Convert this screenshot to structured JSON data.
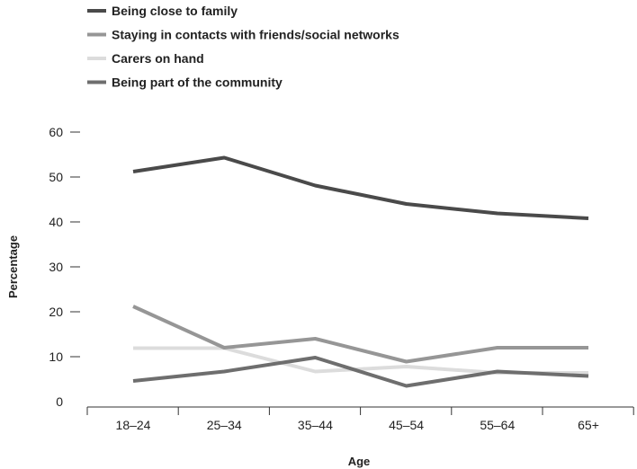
{
  "chart_data": {
    "type": "line",
    "title": "",
    "xlabel": "Age",
    "ylabel": "Percentage",
    "categories": [
      "18–24",
      "25–34",
      "35–44",
      "45–54",
      "55–64",
      "65+"
    ],
    "ylim": [
      0,
      60
    ],
    "yticks": [
      "0",
      "10",
      "20",
      "30",
      "40",
      "50",
      "60"
    ],
    "grid": false,
    "legend_position": "top-left",
    "series": [
      {
        "name": "Being close to family",
        "color": "#4a4a4a",
        "values": [
          51.2,
          54.3,
          48.1,
          44,
          41.9,
          40.8
        ]
      },
      {
        "name": "Staying in contacts with friends/social networks",
        "color": "#969696",
        "values": [
          21.2,
          12,
          14,
          8.9,
          12,
          12
        ]
      },
      {
        "name": "Carers on hand",
        "color": "#dcdcdc",
        "values": [
          11.9,
          11.9,
          6.7,
          7.8,
          6.4,
          6.4
        ]
      },
      {
        "name": "Being part of the community",
        "color": "#6e6e6e",
        "values": [
          4.6,
          6.7,
          9.8,
          3.5,
          6.7,
          5.7
        ]
      }
    ]
  }
}
